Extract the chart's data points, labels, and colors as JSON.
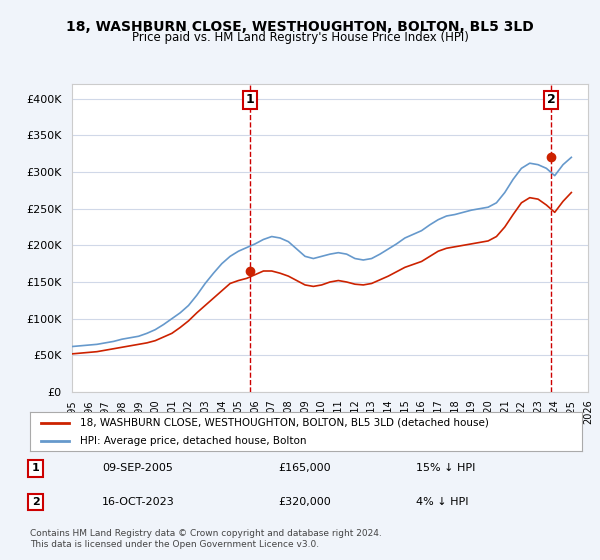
{
  "title": "18, WASHBURN CLOSE, WESTHOUGHTON, BOLTON, BL5 3LD",
  "subtitle": "Price paid vs. HM Land Registry's House Price Index (HPI)",
  "ylabel": "",
  "ylim": [
    0,
    420000
  ],
  "yticks": [
    0,
    50000,
    100000,
    150000,
    200000,
    250000,
    300000,
    350000,
    400000
  ],
  "ytick_labels": [
    "£0",
    "£50K",
    "£100K",
    "£150K",
    "£200K",
    "£250K",
    "£300K",
    "£350K",
    "£400K"
  ],
  "background_color": "#f0f4fa",
  "plot_bg_color": "#ffffff",
  "grid_color": "#d0d8e8",
  "hpi_color": "#6699cc",
  "price_color": "#cc2200",
  "annotation_line_color": "#cc0000",
  "legend_label_price": "18, WASHBURN CLOSE, WESTHOUGHTON, BOLTON, BL5 3LD (detached house)",
  "legend_label_hpi": "HPI: Average price, detached house, Bolton",
  "footnote1": "Contains HM Land Registry data © Crown copyright and database right 2024.",
  "footnote2": "This data is licensed under the Open Government Licence v3.0.",
  "sale1_label": "1",
  "sale1_date": "09-SEP-2005",
  "sale1_price": "£165,000",
  "sale1_hpi": "15% ↓ HPI",
  "sale2_label": "2",
  "sale2_date": "16-OCT-2023",
  "sale2_price": "£320,000",
  "sale2_hpi": "4% ↓ HPI",
  "sale1_x": 2005.69,
  "sale1_y": 165000,
  "sale2_x": 2023.79,
  "sale2_y": 320000,
  "hpi_x": [
    1995,
    1995.5,
    1996,
    1996.5,
    1997,
    1997.5,
    1998,
    1998.5,
    1999,
    1999.5,
    2000,
    2000.5,
    2001,
    2001.5,
    2002,
    2002.5,
    2003,
    2003.5,
    2004,
    2004.5,
    2005,
    2005.5,
    2006,
    2006.5,
    2007,
    2007.5,
    2008,
    2008.5,
    2009,
    2009.5,
    2010,
    2010.5,
    2011,
    2011.5,
    2012,
    2012.5,
    2013,
    2013.5,
    2014,
    2014.5,
    2015,
    2015.5,
    2016,
    2016.5,
    2017,
    2017.5,
    2018,
    2018.5,
    2019,
    2019.5,
    2020,
    2020.5,
    2021,
    2021.5,
    2022,
    2022.5,
    2023,
    2023.5,
    2024,
    2024.5,
    2025
  ],
  "hpi_y": [
    62000,
    63000,
    64000,
    65000,
    67000,
    69000,
    72000,
    74000,
    76000,
    80000,
    85000,
    92000,
    100000,
    108000,
    118000,
    132000,
    148000,
    162000,
    175000,
    185000,
    192000,
    197000,
    202000,
    208000,
    212000,
    210000,
    205000,
    195000,
    185000,
    182000,
    185000,
    188000,
    190000,
    188000,
    182000,
    180000,
    182000,
    188000,
    195000,
    202000,
    210000,
    215000,
    220000,
    228000,
    235000,
    240000,
    242000,
    245000,
    248000,
    250000,
    252000,
    258000,
    272000,
    290000,
    305000,
    312000,
    310000,
    305000,
    295000,
    310000,
    320000
  ],
  "price_x": [
    1995,
    1995.5,
    1996,
    1996.5,
    1997,
    1997.5,
    1998,
    1998.5,
    1999,
    1999.5,
    2000,
    2000.5,
    2001,
    2001.5,
    2002,
    2002.5,
    2003,
    2003.5,
    2004,
    2004.5,
    2005,
    2005.5,
    2006,
    2006.5,
    2007,
    2007.5,
    2008,
    2008.5,
    2009,
    2009.5,
    2010,
    2010.5,
    2011,
    2011.5,
    2012,
    2012.5,
    2013,
    2013.5,
    2014,
    2014.5,
    2015,
    2015.5,
    2016,
    2016.5,
    2017,
    2017.5,
    2018,
    2018.5,
    2019,
    2019.5,
    2020,
    2020.5,
    2021,
    2021.5,
    2022,
    2022.5,
    2023,
    2023.5,
    2024,
    2024.5,
    2025
  ],
  "price_y": [
    52000,
    53000,
    54000,
    55000,
    57000,
    59000,
    61000,
    63000,
    65000,
    67000,
    70000,
    75000,
    80000,
    88000,
    97000,
    108000,
    118000,
    128000,
    138000,
    148000,
    152000,
    155000,
    160000,
    165000,
    165000,
    162000,
    158000,
    152000,
    146000,
    144000,
    146000,
    150000,
    152000,
    150000,
    147000,
    146000,
    148000,
    153000,
    158000,
    164000,
    170000,
    174000,
    178000,
    185000,
    192000,
    196000,
    198000,
    200000,
    202000,
    204000,
    206000,
    212000,
    225000,
    242000,
    258000,
    265000,
    263000,
    255000,
    245000,
    260000,
    272000
  ],
  "xlim": [
    1995,
    2026
  ],
  "xticks": [
    1995,
    1996,
    1997,
    1998,
    1999,
    2000,
    2001,
    2002,
    2003,
    2004,
    2005,
    2006,
    2007,
    2008,
    2009,
    2010,
    2011,
    2012,
    2013,
    2014,
    2015,
    2016,
    2017,
    2018,
    2019,
    2020,
    2021,
    2022,
    2023,
    2024,
    2025,
    2026
  ]
}
